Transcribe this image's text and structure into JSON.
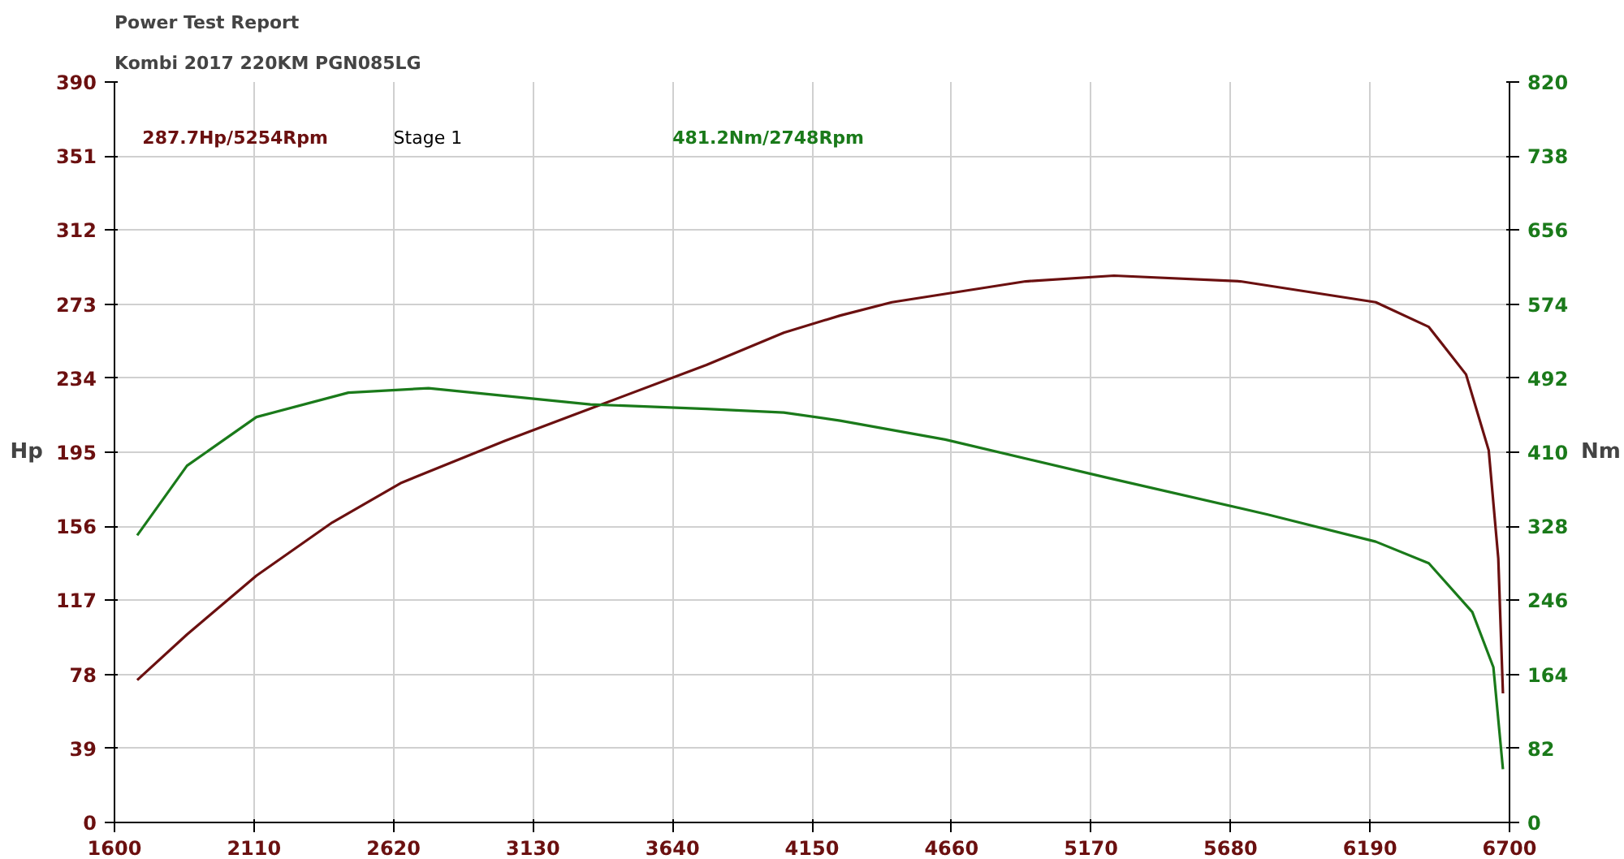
{
  "chart_data": {
    "type": "line",
    "title": "Power Test Report",
    "subtitle": "Kombi 2017 220KM    PGN085LG",
    "ylabel": "Hp",
    "y2label": "Nm",
    "annotations": [
      "287.7Hp/5254Rpm",
      "Stage 1",
      "481.2Nm/2748Rpm"
    ],
    "xlim": [
      1600,
      6700
    ],
    "xticks": [
      1600,
      2110,
      2620,
      3130,
      3640,
      4150,
      4660,
      5170,
      5680,
      6190,
      6700
    ],
    "ylim": [
      0,
      390
    ],
    "yticks": [
      0,
      39,
      78,
      117,
      156,
      195,
      234,
      273,
      312,
      351,
      390
    ],
    "y2lim": [
      0,
      820
    ],
    "y2ticks": [
      0,
      82,
      164,
      246,
      328,
      410,
      492,
      574,
      656,
      738,
      820
    ],
    "grid": true,
    "series": [
      {
        "color": "#6b1010",
        "x": [
          1683,
          1865,
          2119,
          2396,
          2650,
          3027,
          3340,
          3764,
          4047,
          4253,
          4442,
          4931,
          5254,
          5716,
          6211,
          6405,
          6541,
          6624,
          6659,
          6676
        ],
        "values": [
          75,
          99,
          130,
          158,
          179,
          201,
          218,
          241,
          258,
          267,
          274,
          285,
          288,
          285,
          274,
          261,
          236,
          196,
          139,
          68
        ]
      },
      {
        "color": "#1a7a1a",
        "axis": "y2",
        "x": [
          1683,
          1865,
          2119,
          2455,
          2748,
          3340,
          3764,
          4047,
          4253,
          4637,
          5226,
          5816,
          6211,
          6405,
          6564,
          6641,
          6676
        ],
        "values": [
          318,
          395,
          449,
          476,
          481,
          463,
          458,
          454,
          445,
          424,
          382,
          341,
          311,
          287,
          233,
          172,
          59
        ]
      }
    ]
  }
}
